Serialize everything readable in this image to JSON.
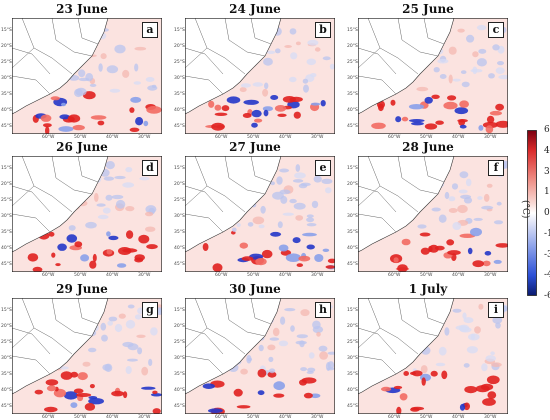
{
  "panels": [
    {
      "title": "23 June",
      "letter": "a"
    },
    {
      "title": "24 June",
      "letter": "b"
    },
    {
      "title": "25 June",
      "letter": "c"
    },
    {
      "title": "26 June",
      "letter": "d"
    },
    {
      "title": "27 June",
      "letter": "e"
    },
    {
      "title": "28 June",
      "letter": "f"
    },
    {
      "title": "29 June",
      "letter": "g"
    },
    {
      "title": "30 June",
      "letter": "h"
    },
    {
      "title": "1 July",
      "letter": "i"
    }
  ],
  "lat_labels": [
    "15°S",
    "20°S",
    "25°S",
    "30°S",
    "35°S",
    "40°S",
    "45°S"
  ],
  "lon_labels": [
    "60°W",
    "50°W",
    "40°W",
    "30°W"
  ],
  "colorbar": {
    "unit": "(°C)",
    "ticks": [
      "6.0",
      "4.5",
      "3.0",
      "1.5",
      "0.0",
      "-1.5",
      "-3.0",
      "-4.5",
      "-6.0"
    ],
    "min": -6.0,
    "max": 6.0,
    "colors": [
      "#0b1a6e",
      "#2b4fd6",
      "#8ea3ea",
      "#dfe3f6",
      "#ffffff",
      "#f8d9d4",
      "#ee8f86",
      "#d92a2a",
      "#7a0010"
    ]
  }
}
